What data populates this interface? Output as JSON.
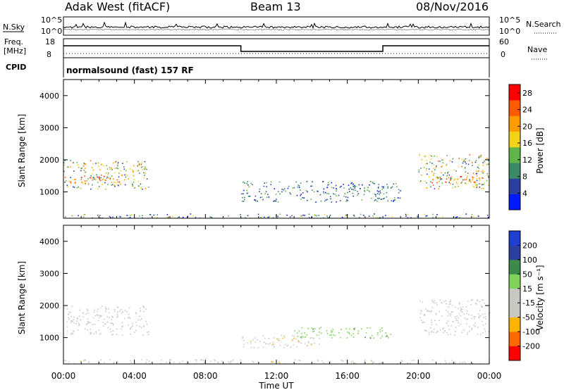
{
  "header": {
    "station": "Adak West (fitACF)",
    "beam": "Beam 13",
    "date": "08/Nov/2016"
  },
  "top_panels": {
    "nsky_label": "N.Sky",
    "nsearch_label": "N.Search",
    "noise_ticks_left": [
      "10^5",
      "10^0"
    ],
    "noise_ticks_right": [
      "10^5",
      "10^0"
    ],
    "freq_label": "Freq.",
    "freq_unit": "[MHz]",
    "freq_ticks": [
      "18",
      "8"
    ],
    "nave_ticks": [
      "60",
      "0"
    ],
    "nave_label": "Nave",
    "cpid_label": "CPID",
    "cpid_text": "normalsound (fast) 157 RF"
  },
  "colors": {
    "power": [
      "#0019ff",
      "#2a3fa0",
      "#3b8a66",
      "#5fb548",
      "#f2d31a",
      "#ff9c00",
      "#ff5a00",
      "#ff0000"
    ],
    "velocity": [
      "#ff0000",
      "#ff6a00",
      "#ffb300",
      "#c8c8c0",
      "#c8c8c0",
      "#7fd25a",
      "#3b8a4a",
      "#2a3fa0",
      "#1f3fd0"
    ]
  },
  "chart_data": [
    {
      "type": "heatmap",
      "ylabel": "Slant Range [km]",
      "ylim": [
        180,
        4500
      ],
      "yticks": [
        "1000",
        "2000",
        "3000",
        "4000"
      ],
      "colorbar": {
        "label": "Power [dB]",
        "ticks": [
          "4",
          "8",
          "12",
          "16",
          "20",
          "24",
          "28"
        ],
        "range": [
          0,
          30
        ]
      },
      "regions": [
        {
          "t": [
            0,
            4.8
          ],
          "range": [
            1100,
            2000
          ],
          "value": 14,
          "spread": 10
        },
        {
          "t": [
            0,
            3.2
          ],
          "range": [
            1250,
            1500
          ],
          "value": 24,
          "spread": 5
        },
        {
          "t": [
            10,
            19
          ],
          "range": [
            700,
            1350
          ],
          "value": 8,
          "spread": 6
        },
        {
          "t": [
            20,
            24
          ],
          "range": [
            1100,
            2200
          ],
          "value": 14,
          "spread": 10
        },
        {
          "t": [
            20.5,
            24
          ],
          "range": [
            1250,
            1500
          ],
          "value": 22,
          "spread": 6
        },
        {
          "t": [
            0,
            24
          ],
          "range": [
            200,
            330
          ],
          "value": 8,
          "spread": 10
        }
      ]
    },
    {
      "type": "heatmap",
      "ylabel": "Slant Range [km]",
      "ylim": [
        180,
        4500
      ],
      "yticks": [
        "1000",
        "2000",
        "3000",
        "4000"
      ],
      "colorbar": {
        "label": "Velocity [m s⁻¹]",
        "ticks": [
          "200",
          "100",
          "50",
          "15",
          "-15",
          "-50",
          "-100",
          "-200"
        ],
        "range": [
          -250,
          250
        ]
      },
      "xlabel": "Time UT",
      "xticks": [
        "00:00",
        "04:00",
        "08:00",
        "12:00",
        "16:00",
        "20:00",
        "00:00"
      ],
      "xlim": [
        0,
        24
      ],
      "regions": [
        {
          "t": [
            0,
            4.8
          ],
          "range": [
            1100,
            2000
          ],
          "value": 0,
          "spread": 20
        },
        {
          "t": [
            10,
            14.5
          ],
          "range": [
            700,
            1100
          ],
          "value": -60,
          "spread": 30
        },
        {
          "t": [
            13,
            18.5
          ],
          "range": [
            1000,
            1350
          ],
          "value": 60,
          "spread": 25
        },
        {
          "t": [
            20,
            24
          ],
          "range": [
            1100,
            2200
          ],
          "value": 0,
          "spread": 20
        },
        {
          "t": [
            0,
            24
          ],
          "range": [
            200,
            330
          ],
          "value": -30,
          "spread": 60
        }
      ]
    }
  ]
}
